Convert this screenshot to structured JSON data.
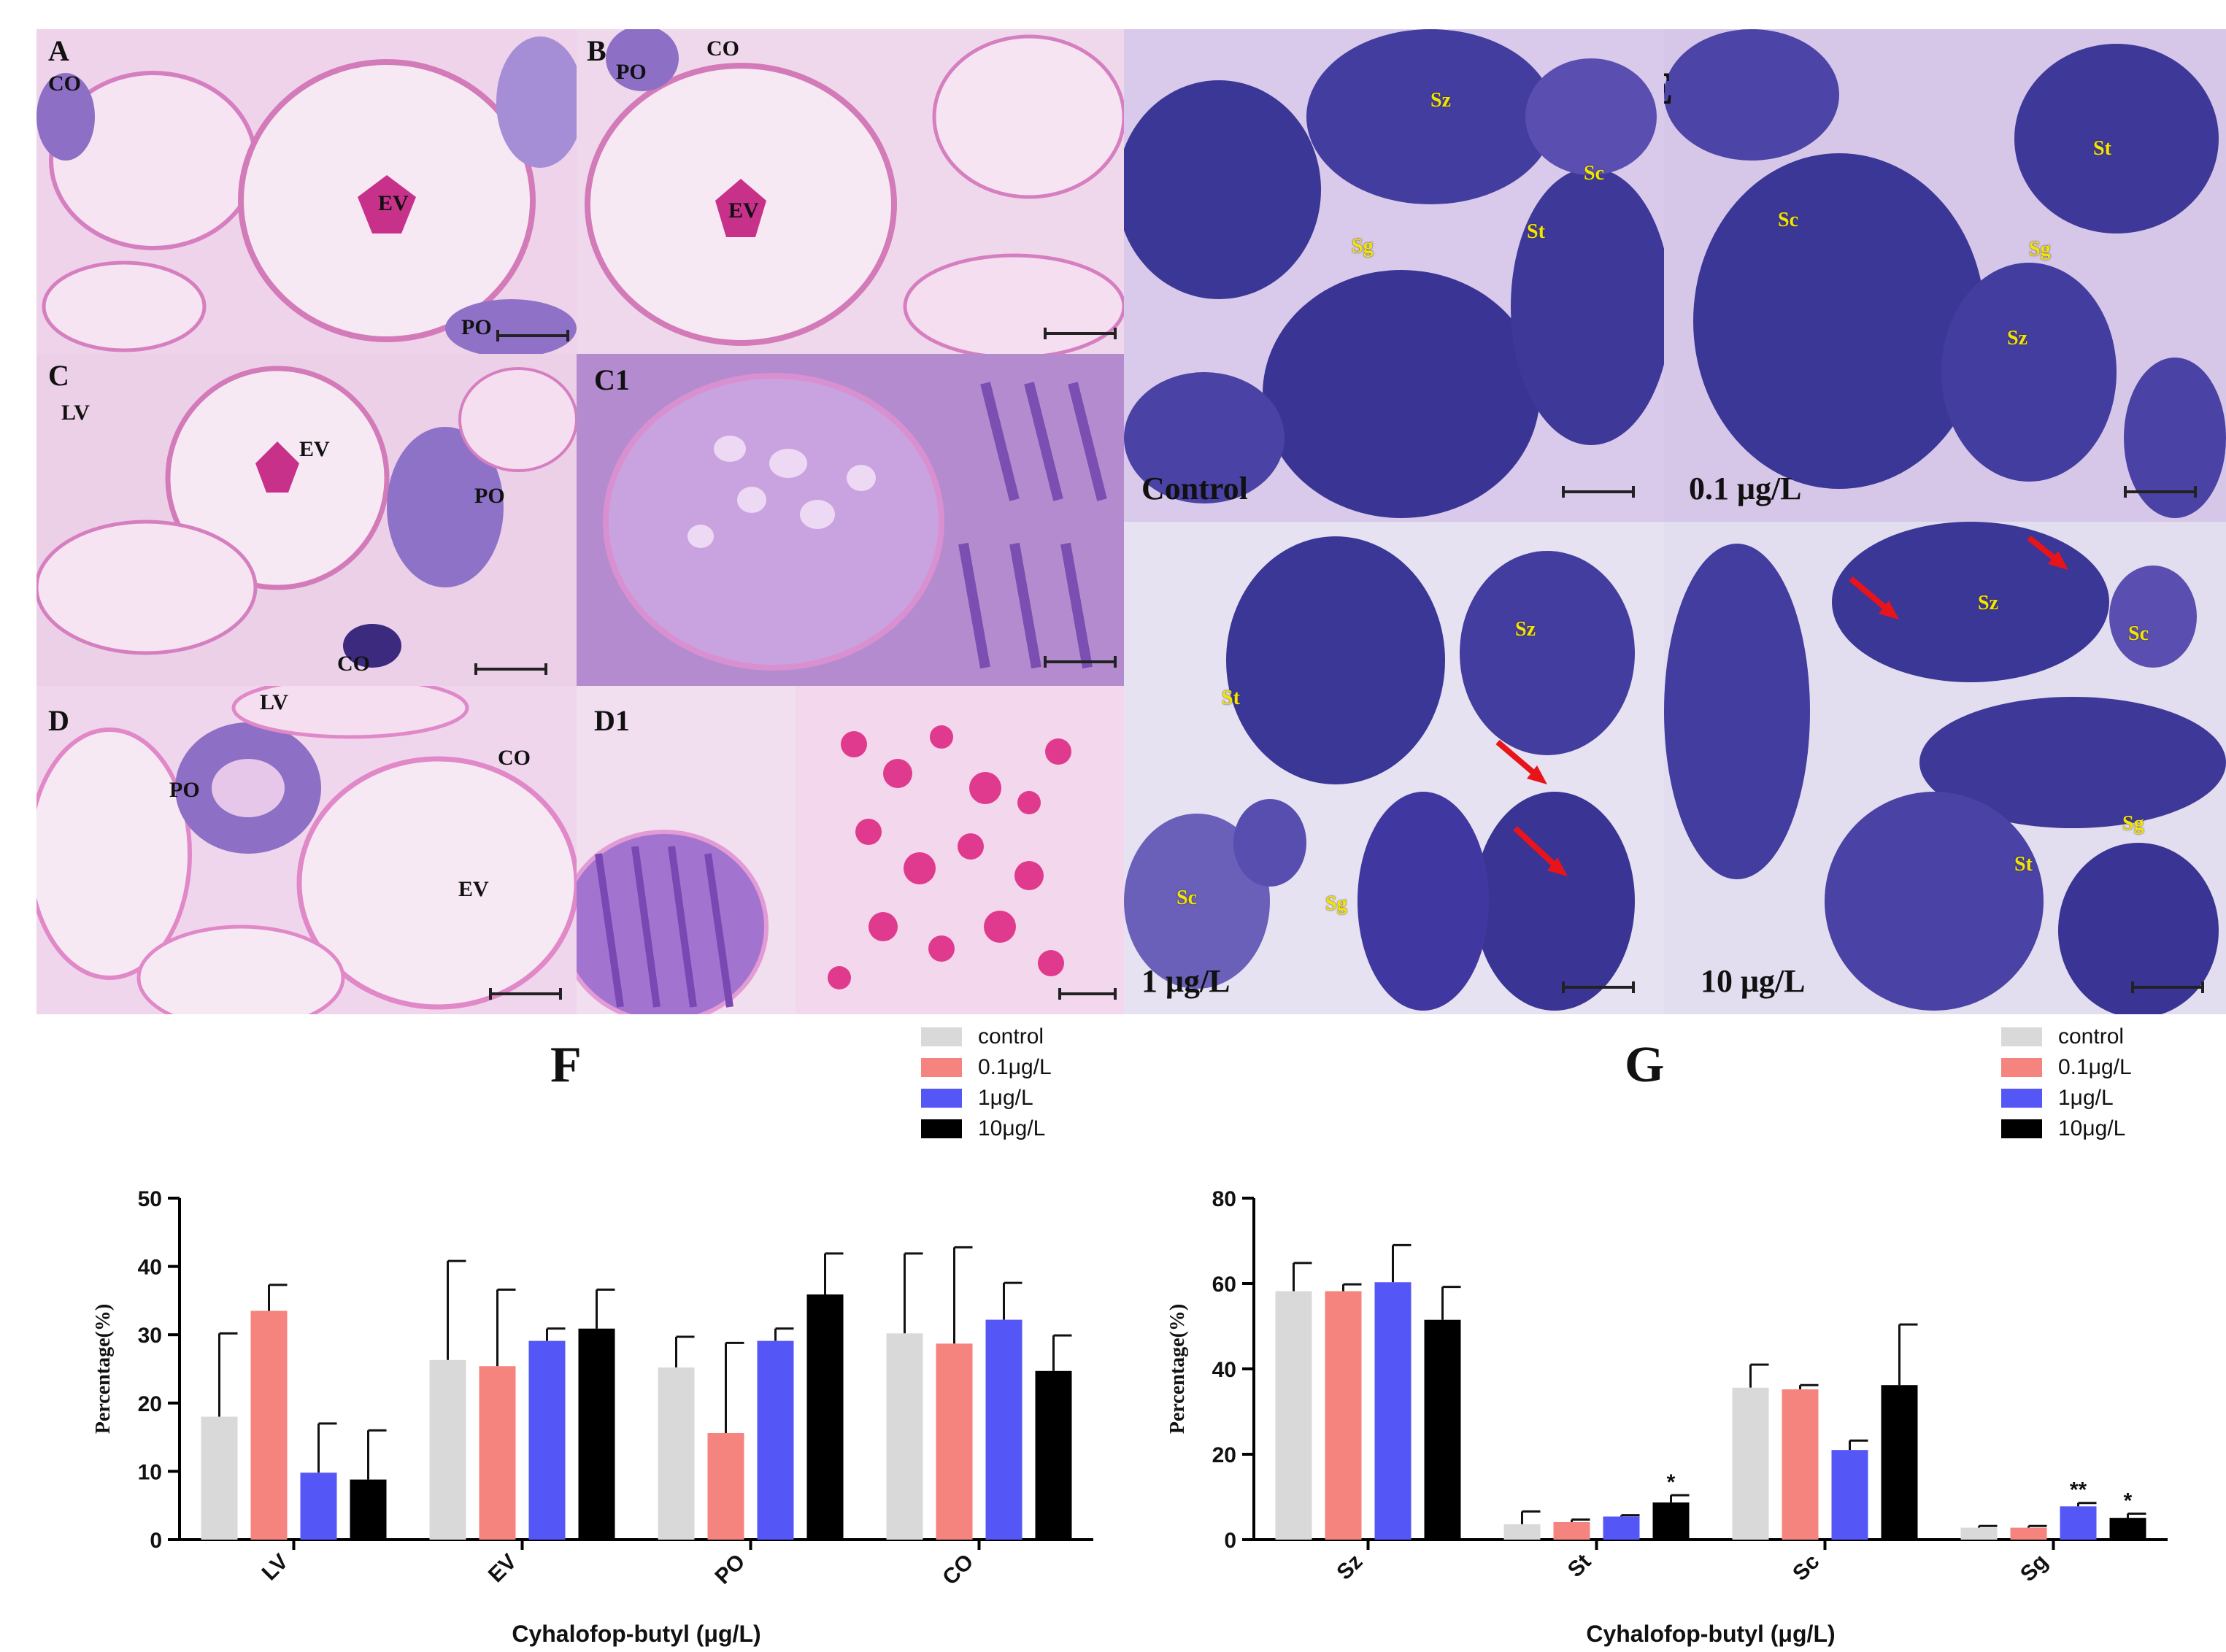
{
  "panels": {
    "A": {
      "letter": "A",
      "labels": [
        "CO",
        "EV",
        "PO"
      ]
    },
    "B": {
      "letter": "B",
      "labels": [
        "PO",
        "CO",
        "EV"
      ]
    },
    "C": {
      "letter": "C",
      "labels": [
        "LV",
        "EV",
        "PO",
        "CO"
      ]
    },
    "C1": {
      "letter": "C1"
    },
    "D": {
      "letter": "D",
      "labels": [
        "LV",
        "PO",
        "CO",
        "EV"
      ]
    },
    "D1": {
      "letter": "D1"
    },
    "E": {
      "letter": "E"
    },
    "E1": {
      "condition": "Control",
      "labels": [
        "Sz",
        "Sc",
        "St",
        "Sg"
      ]
    },
    "E2": {
      "condition": "0.1 μg/L",
      "labels": [
        "St",
        "Sc",
        "Sg",
        "Sz"
      ]
    },
    "E3": {
      "condition": "1 μg/L",
      "labels": [
        "Sz",
        "St",
        "Sc",
        "Sg"
      ]
    },
    "E4": {
      "condition": "10 μg/L",
      "labels": [
        "Sz",
        "Sc",
        "St",
        "Sg"
      ]
    }
  },
  "colors": {
    "control": "#d9d9d9",
    "dose_0_1": "#f5837e",
    "dose_1": "#5457f5",
    "dose_10": "#000000",
    "arrow": "#e8141a",
    "tissue_label": "#f5e400"
  },
  "chart_data": [
    {
      "letter": "F",
      "type": "bar",
      "categories": [
        "LV",
        "EV",
        "PO",
        "CO"
      ],
      "series": [
        {
          "name": "control",
          "values": [
            18,
            26.3,
            25.2,
            30.2
          ],
          "errors": [
            12.2,
            14.5,
            4.5,
            11.7
          ]
        },
        {
          "name": "0.1μg/L",
          "values": [
            33.5,
            25.4,
            15.6,
            28.7
          ],
          "errors": [
            3.8,
            11.2,
            13.2,
            14.1
          ]
        },
        {
          "name": "1μg/L",
          "values": [
            9.8,
            29.1,
            29.1,
            32.2
          ],
          "errors": [
            7.2,
            1.8,
            1.8,
            5.4
          ]
        },
        {
          "name": "10μg/L",
          "values": [
            8.8,
            30.9,
            35.9,
            24.7
          ],
          "errors": [
            7.2,
            5.7,
            6.0,
            5.2
          ]
        }
      ],
      "significance": [],
      "xlabel": "Cyhalofop-butyl (μg/L)",
      "ylabel": "Percentage(%)",
      "ylim": [
        0,
        50
      ],
      "yticks": [
        "0",
        "10",
        "20",
        "30",
        "40",
        "50"
      ],
      "legend_position": "top-right"
    },
    {
      "letter": "G",
      "type": "bar",
      "categories": [
        "Sz",
        "St",
        "Sc",
        "Sg"
      ],
      "series": [
        {
          "name": "control",
          "values": [
            58.2,
            3.6,
            35.6,
            2.8
          ],
          "errors": [
            6.6,
            3.0,
            5.4,
            0.4
          ]
        },
        {
          "name": "0.1μg/L",
          "values": [
            58.2,
            4.1,
            35.2,
            2.8
          ],
          "errors": [
            1.6,
            0.6,
            1.0,
            0.4
          ]
        },
        {
          "name": "1μg/L",
          "values": [
            60.3,
            5.4,
            21.0,
            7.8
          ],
          "errors": [
            8.7,
            0.3,
            2.2,
            0.8
          ]
        },
        {
          "name": "10μg/L",
          "values": [
            51.5,
            8.7,
            36.2,
            5.1
          ],
          "errors": [
            7.7,
            1.7,
            14.2,
            1.0
          ]
        }
      ],
      "significance": [
        {
          "category": "St",
          "series": "10μg/L",
          "mark": "*"
        },
        {
          "category": "Sg",
          "series": "1μg/L",
          "mark": "**"
        },
        {
          "category": "Sg",
          "series": "10μg/L",
          "mark": "*"
        }
      ],
      "xlabel": "Cyhalofop-butyl (μg/L)",
      "ylabel": "Percentage(%)",
      "ylim": [
        0,
        80
      ],
      "yticks": [
        "0",
        "20",
        "40",
        "60",
        "80"
      ],
      "legend_position": "top-right"
    }
  ]
}
